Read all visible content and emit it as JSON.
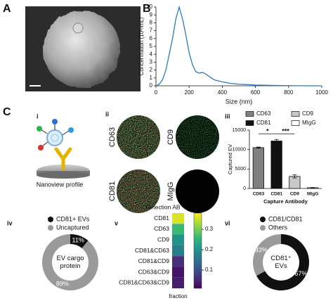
{
  "panel_labels": [
    "A",
    "B",
    "C"
  ],
  "sublabels": [
    "i",
    "ii",
    "iii",
    "iv",
    "v",
    "vi"
  ],
  "nanoview_label": "Nanoview profile",
  "image_labels": [
    "CD63",
    "CD9",
    "CD81",
    "MIgG"
  ],
  "chart_data": [
    {
      "type": "line",
      "color": "#2b7bba",
      "x": [
        0,
        20,
        40,
        60,
        80,
        100,
        120,
        140,
        160,
        180,
        200,
        220,
        240,
        260,
        280,
        300,
        320,
        340,
        360,
        380,
        400,
        450,
        500,
        550,
        600,
        700,
        800,
        900,
        1000
      ],
      "values": [
        0,
        0.2,
        0.8,
        2,
        4,
        6,
        8.5,
        10,
        8.5,
        6.5,
        4.2,
        2.7,
        1.8,
        1.6,
        1.7,
        1.5,
        1.2,
        0.9,
        0.7,
        0.6,
        0.5,
        0.3,
        0.2,
        0.15,
        0.1,
        0.05,
        0.02,
        0,
        0
      ],
      "xlim": [
        0,
        1000
      ],
      "xticks": [
        0,
        200,
        400,
        600,
        800,
        1000
      ],
      "ylim": [
        0,
        10
      ],
      "yticks": [
        0,
        1,
        2,
        3,
        4,
        5,
        6,
        7,
        8,
        9,
        10
      ],
      "x_label": "Size (nm)",
      "y_label": "Concentration (10⁶/mL)"
    },
    {
      "type": "bar",
      "categories": [
        "CD63",
        "CD81",
        "CD9",
        "MIgG"
      ],
      "values": [
        10500,
        12200,
        3100,
        200
      ],
      "errors": [
        150,
        400,
        400,
        60
      ],
      "colors": [
        "#808080",
        "#111111",
        "#c8c8c8",
        "#ffffff"
      ],
      "ylim": [
        0,
        15000
      ],
      "yticks": [
        0,
        5000,
        10000,
        15000
      ],
      "x_label": "Capture Antibody",
      "y_label": "Captured EV",
      "annotations": [
        "*",
        "***"
      ]
    },
    {
      "type": "pie",
      "categories": [
        "CD81+ EVs",
        "Uncaptured"
      ],
      "values": [
        11,
        89
      ],
      "value_labels": [
        "11%",
        "89%"
      ],
      "colors": [
        "#111111",
        "#9a9a9a"
      ],
      "center_text": [
        "EV cargo",
        "protein"
      ]
    },
    {
      "type": "heatmap",
      "title": "Detection AB",
      "rows": [
        "CD81",
        "CD63",
        "CD9",
        "CD81&CD63",
        "CD81&CD9",
        "CD63&CD9",
        "CD81&CD63&CD9"
      ],
      "columns": [
        "fraction"
      ],
      "values": [
        0.36,
        0.26,
        0.2,
        0.17,
        0.06,
        0.03,
        0.04
      ],
      "clim": [
        0.01,
        0.38
      ],
      "cticks": [
        0.1,
        0.2,
        0.3
      ]
    },
    {
      "type": "pie",
      "categories": [
        "CD81/CD81",
        "Others"
      ],
      "values": [
        67,
        33
      ],
      "value_labels": [
        "67%",
        "33%"
      ],
      "colors": [
        "#111111",
        "#9a9a9a"
      ],
      "center_text": [
        "CD81⁺",
        "EVs"
      ]
    }
  ]
}
